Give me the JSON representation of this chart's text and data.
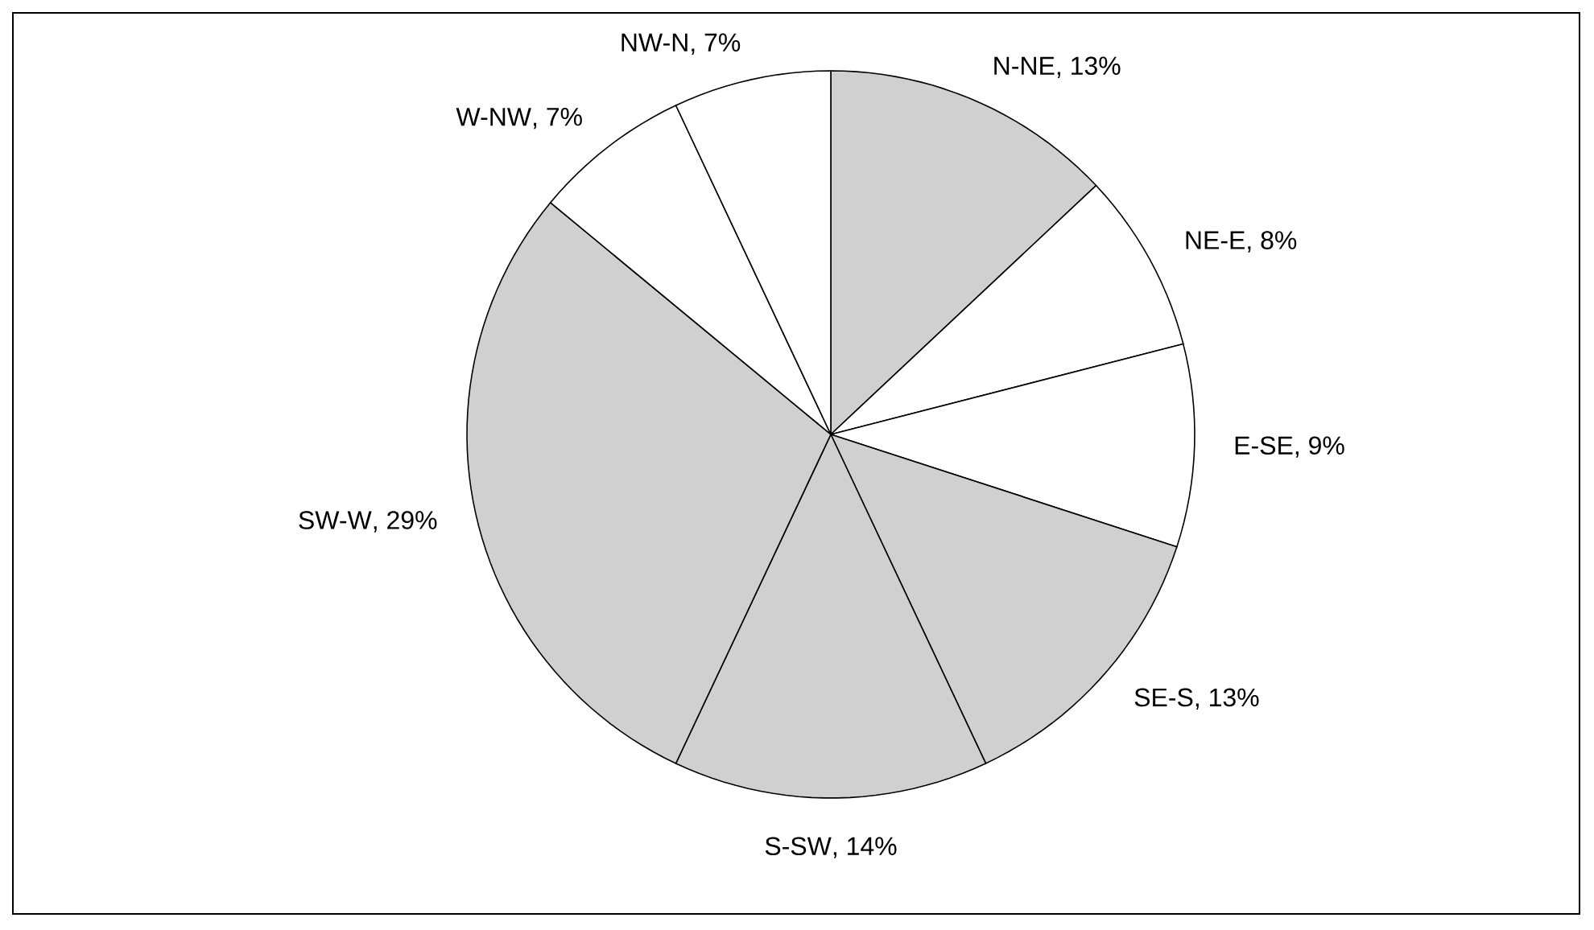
{
  "chart_data": {
    "type": "pie",
    "categories": [
      "N-NE",
      "NE-E",
      "E-SE",
      "SE-S",
      "S-SW",
      "SW-W",
      "W-NW",
      "NW-N"
    ],
    "values": [
      13,
      8,
      9,
      13,
      14,
      29,
      7,
      7
    ],
    "value_labels": [
      ", 13%",
      ", 8%",
      ", 9%",
      ", 13%",
      ", 14%",
      ", 29%",
      ", 7%",
      ", 7%"
    ],
    "colors": [
      "#d0d0d0",
      "#ffffff",
      "#ffffff",
      "#d0d0d0",
      "#d0d0d0",
      "#d0d0d0",
      "#ffffff",
      "#ffffff"
    ],
    "legend": false
  }
}
